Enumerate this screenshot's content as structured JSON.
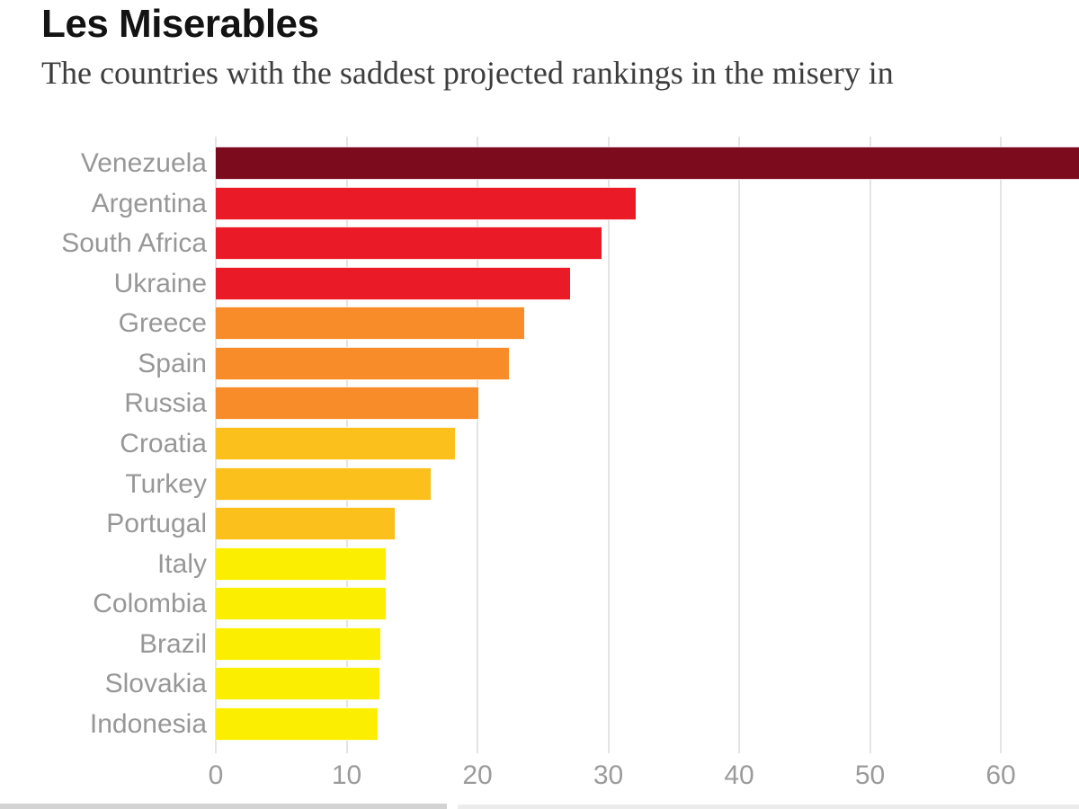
{
  "header": {
    "title": "Les Miserables",
    "subtitle": "The countries with the saddest projected rankings in the misery in"
  },
  "chart_data": {
    "type": "bar",
    "orientation": "horizontal",
    "title": "Les Miserables",
    "subtitle_visible_text": "The countries with the saddest projected rankings in the misery in",
    "xlabel": "",
    "ylabel": "",
    "x_ticks": [
      0,
      10,
      20,
      30,
      40,
      50,
      60
    ],
    "xlim": [
      0,
      66
    ],
    "grid": "vertical light-gray gridlines behind bars",
    "legend": "none",
    "note": "Venezuela bar runs past the right edge of the image (value off-scale, clipped)",
    "series": [
      {
        "label": "Venezuela",
        "value": 75,
        "clipped": true,
        "color": "#7c0b1e"
      },
      {
        "label": "Argentina",
        "value": 32.1,
        "clipped": false,
        "color": "#ea1b26"
      },
      {
        "label": "South Africa",
        "value": 29.5,
        "clipped": false,
        "color": "#ea1b26"
      },
      {
        "label": "Ukraine",
        "value": 27.1,
        "clipped": false,
        "color": "#ea1b26"
      },
      {
        "label": "Greece",
        "value": 23.6,
        "clipped": false,
        "color": "#f78c29"
      },
      {
        "label": "Spain",
        "value": 22.4,
        "clipped": false,
        "color": "#f78c29"
      },
      {
        "label": "Russia",
        "value": 20.1,
        "clipped": false,
        "color": "#f78c29"
      },
      {
        "label": "Croatia",
        "value": 18.3,
        "clipped": false,
        "color": "#fbc01b"
      },
      {
        "label": "Turkey",
        "value": 16.4,
        "clipped": false,
        "color": "#fbc01b"
      },
      {
        "label": "Portugal",
        "value": 13.7,
        "clipped": false,
        "color": "#fbc01b"
      },
      {
        "label": "Italy",
        "value": 13.0,
        "clipped": false,
        "color": "#fcee00"
      },
      {
        "label": "Colombia",
        "value": 13.0,
        "clipped": false,
        "color": "#fcee00"
      },
      {
        "label": "Brazil",
        "value": 12.6,
        "clipped": false,
        "color": "#fcee00"
      },
      {
        "label": "Slovakia",
        "value": 12.5,
        "clipped": false,
        "color": "#fcee00"
      },
      {
        "label": "Indonesia",
        "value": 12.4,
        "clipped": false,
        "color": "#fcee00"
      }
    ]
  },
  "colors": {
    "title_text": "#131313",
    "subtitle_text": "#3d3d3d",
    "bar_label_text": "#979797",
    "axis_tick_text": "#9b9b9b",
    "gridline": "#e4e4e4",
    "band_dark_red": "#7c0b1e",
    "band_red": "#ea1b26",
    "band_orange": "#f78c29",
    "band_gold": "#fbc01b",
    "band_yellow": "#fcee00",
    "bottom_strip_left": "#d3d3d3",
    "bottom_strip_right": "#ececec"
  },
  "clipped_bottom_elements": {
    "left_strip": "partial gray element cut off at bottom edge (left)",
    "right_strip": "partial gray element cut off at bottom edge (right)"
  }
}
